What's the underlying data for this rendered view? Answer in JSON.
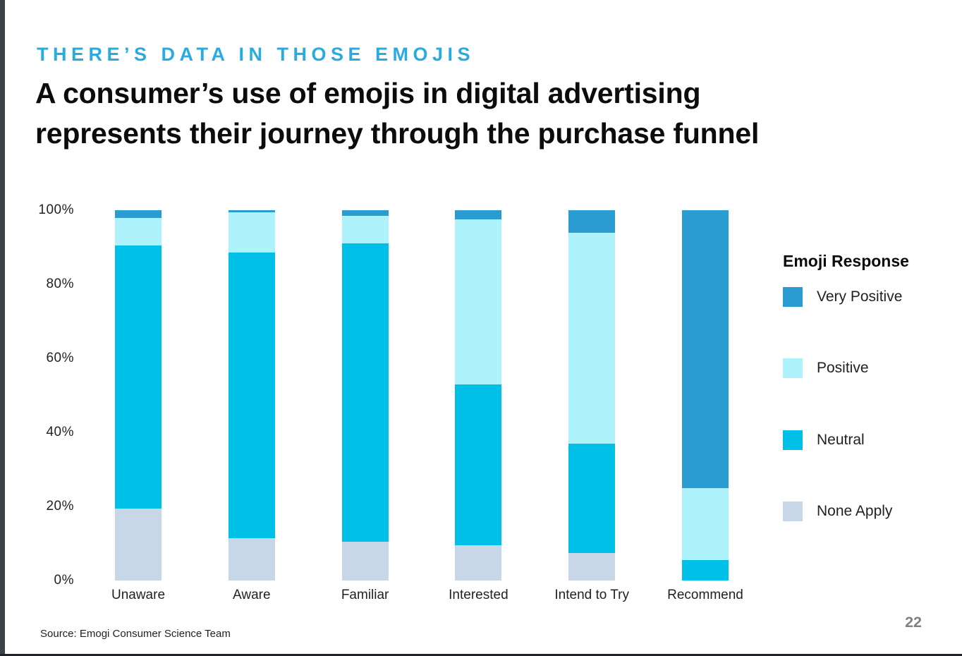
{
  "window": {
    "edge_left_color": "#3E4347",
    "edge_bottom_color": "#212328"
  },
  "header": {
    "kicker": "THERE’S DATA IN THOSE EMOJIS",
    "kicker_color": "#29ABE2",
    "title_line1": "A consumer’s use of emojis in digital advertising",
    "title_line2": "represents their journey through the purchase funnel"
  },
  "footer": {
    "source": "Source: Emogi Consumer Science Team",
    "page_number": "22"
  },
  "chart_data": {
    "type": "bar",
    "stacked": true,
    "unit": "percent",
    "title": "",
    "xlabel": "",
    "ylabel": "",
    "ylim": [
      0,
      100
    ],
    "grid": false,
    "yticks": [
      "100%",
      "80%",
      "60%",
      "40%",
      "20%",
      "0%"
    ],
    "categories": [
      "Unaware",
      "Aware",
      "Familiar",
      "Interested",
      "Intend to Try",
      "Recommend"
    ],
    "series": [
      {
        "name": "None Apply",
        "color": "#C7D7E8",
        "values": [
          19.5,
          11.5,
          10.5,
          9.5,
          7.5,
          0
        ]
      },
      {
        "name": "Neutral",
        "color": "#00C0E8",
        "values": [
          71,
          77,
          80.5,
          43.5,
          29.5,
          5.5
        ]
      },
      {
        "name": "Positive",
        "color": "#AEF3FB",
        "values": [
          7.5,
          11,
          7.5,
          44.5,
          57,
          19.5
        ]
      },
      {
        "name": "Very Positive",
        "color": "#2A9CD2",
        "values": [
          2,
          0.5,
          1.5,
          2.5,
          6,
          75
        ]
      }
    ],
    "legend_position": "right",
    "legend_title": "Emoji Response",
    "legend_order": [
      "Very Positive",
      "Positive",
      "Neutral",
      "None Apply"
    ]
  }
}
